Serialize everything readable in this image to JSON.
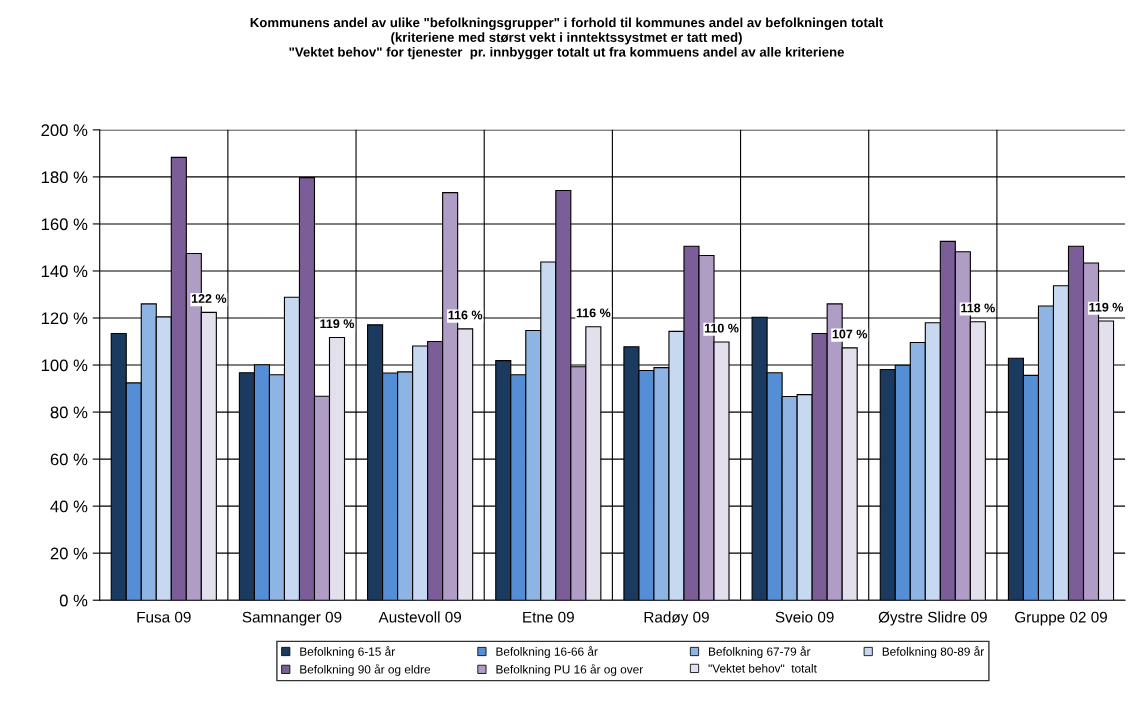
{
  "chart_data": {
    "type": "bar",
    "title": "Kommunens andel av ulike \"befolkningsgrupper\" i forhold til kommunes andel av befolkningen totalt\n(kriteriene med størst vekt i inntektssystmet er tatt med)\n\"Vektet behov\" for tjenester  pr. innbygger totalt ut fra kommuens andel av alle kriteriene",
    "categories": [
      "Fusa 09",
      "Samnanger 09",
      "Austevoll 09",
      "Etne 09",
      "Radøy 09",
      "Sveio 09",
      "Øystre Slidre 09",
      "Gruppe 02 09"
    ],
    "series": [
      {
        "name": "Befolkning 6-15 år",
        "color": "#1a3a60",
        "values": [
          113.4,
          96.7,
          117.1,
          101.9,
          107.8,
          120.3,
          98.1,
          102.9
        ]
      },
      {
        "name": "Befolkning 16-66 år",
        "color": "#558ed5",
        "values": [
          92.4,
          100.1,
          96.6,
          95.9,
          97.7,
          96.7,
          99.9,
          95.6
        ]
      },
      {
        "name": "Befolkning 67-79 år",
        "color": "#8eb4e3",
        "values": [
          126,
          95.9,
          97.1,
          114.7,
          98.9,
          86.6,
          109.6,
          125.1
        ]
      },
      {
        "name": "Befolkning 80-89 år",
        "color": "#c6d9f0",
        "values": [
          120.5,
          128.8,
          108.1,
          143.8,
          114.3,
          87.4,
          118,
          133.7
        ]
      },
      {
        "name": "Befolkning 90 år og eldre",
        "color": "#7b5e98",
        "values": [
          188.3,
          179.7,
          110,
          174.2,
          150.5,
          113.4,
          152.6,
          150.5
        ]
      },
      {
        "name": "Befolkning PU 16 år og over",
        "color": "#b09dc5",
        "values": [
          147.4,
          86.7,
          173.3,
          99.3,
          146.6,
          126,
          148.2,
          143.4
        ]
      },
      {
        "name": "\"Vektet behov\"  totalt",
        "color": "#e4dfec",
        "values": [
          122.4,
          111.7,
          115.4,
          116.3,
          109.8,
          107.3,
          118.4,
          118.7
        ]
      }
    ],
    "annotations": [
      "122 %",
      "119 %",
      "116 %",
      "116 %",
      "110 %",
      "107 %",
      "118 %",
      "119 %"
    ],
    "ylim": [
      0,
      200
    ],
    "yticks": [
      {
        "value": 0,
        "label": "0 %"
      },
      {
        "value": 20,
        "label": "20 %"
      },
      {
        "value": 40,
        "label": "40 %"
      },
      {
        "value": 60,
        "label": "60 %"
      },
      {
        "value": 80,
        "label": "80 %"
      },
      {
        "value": 100,
        "label": "100 %"
      },
      {
        "value": 120,
        "label": "120 %"
      },
      {
        "value": 140,
        "label": "140 %"
      },
      {
        "value": 160,
        "label": "160 %"
      },
      {
        "value": 180,
        "label": "180 %"
      },
      {
        "value": 200,
        "label": "200 %"
      }
    ],
    "grid": true,
    "legend": "bottom"
  }
}
